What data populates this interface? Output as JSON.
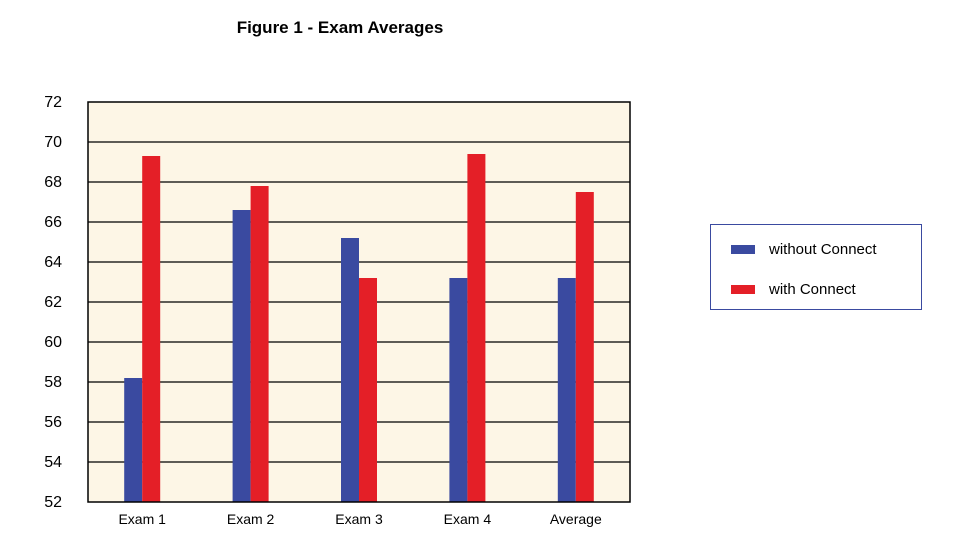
{
  "chart_data": {
    "type": "bar",
    "title": "Figure 1 - Exam Averages",
    "xlabel": "",
    "ylabel": "",
    "categories": [
      "Exam 1",
      "Exam 2",
      "Exam 3",
      "Exam 4",
      "Average"
    ],
    "series": [
      {
        "name": "without Connect",
        "color": "#3a4aa0",
        "values": [
          58.2,
          66.6,
          65.2,
          63.2,
          63.2
        ]
      },
      {
        "name": "with Connect",
        "color": "#e41f27",
        "values": [
          69.3,
          67.8,
          63.2,
          69.4,
          67.5
        ]
      }
    ],
    "ylim": [
      52,
      72
    ],
    "y_ticks": [
      "72",
      "70",
      "68",
      "66",
      "64",
      "62",
      "60",
      "58",
      "56",
      "54",
      "52"
    ],
    "grid": true,
    "legend_position": "right",
    "plot_background": "#fdf6e6"
  }
}
